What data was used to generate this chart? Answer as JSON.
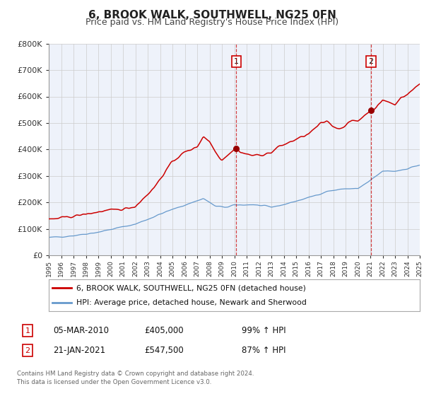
{
  "title": "6, BROOK WALK, SOUTHWELL, NG25 0FN",
  "subtitle": "Price paid vs. HM Land Registry's House Price Index (HPI)",
  "ylim": [
    0,
    800000
  ],
  "yticks": [
    0,
    100000,
    200000,
    300000,
    400000,
    500000,
    600000,
    700000,
    800000
  ],
  "ytick_labels": [
    "£0",
    "£100K",
    "£200K",
    "£300K",
    "£400K",
    "£500K",
    "£600K",
    "£700K",
    "£800K"
  ],
  "x_start_year": 1995,
  "x_end_year": 2025,
  "sale1_date": 2010.17,
  "sale1_price": 405000,
  "sale1_label": "1",
  "sale1_text": "05-MAR-2010",
  "sale1_amount": "£405,000",
  "sale1_pct": "99% ↑ HPI",
  "sale2_date": 2021.05,
  "sale2_price": 547500,
  "sale2_label": "2",
  "sale2_text": "21-JAN-2021",
  "sale2_amount": "£547,500",
  "sale2_pct": "87% ↑ HPI",
  "legend1": "6, BROOK WALK, SOUTHWELL, NG25 0FN (detached house)",
  "legend2": "HPI: Average price, detached house, Newark and Sherwood",
  "footer1": "Contains HM Land Registry data © Crown copyright and database right 2024.",
  "footer2": "This data is licensed under the Open Government Licence v3.0.",
  "line1_color": "#cc0000",
  "line2_color": "#6699cc",
  "background_color": "#eef2fa",
  "plot_bg": "#ffffff",
  "grid_color": "#cccccc",
  "title_fontsize": 11,
  "subtitle_fontsize": 9
}
